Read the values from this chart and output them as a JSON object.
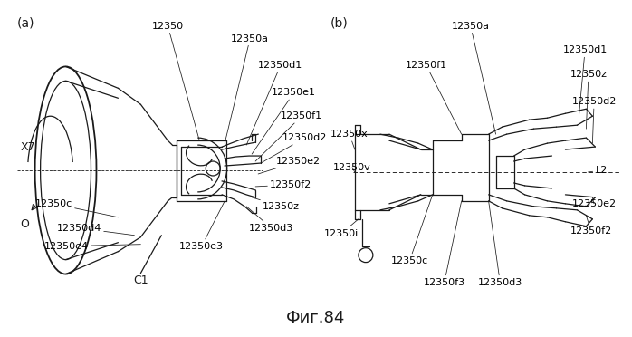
{
  "title": "Фиг.84",
  "title_fontsize": 13,
  "label_fontsize": 8.0,
  "background_color": "#ffffff",
  "line_color": "#1a1a1a",
  "panel_a_label": "(a)",
  "panel_b_label": "(b)",
  "fig_width": 6.98,
  "fig_height": 3.72,
  "fig_dpi": 100
}
